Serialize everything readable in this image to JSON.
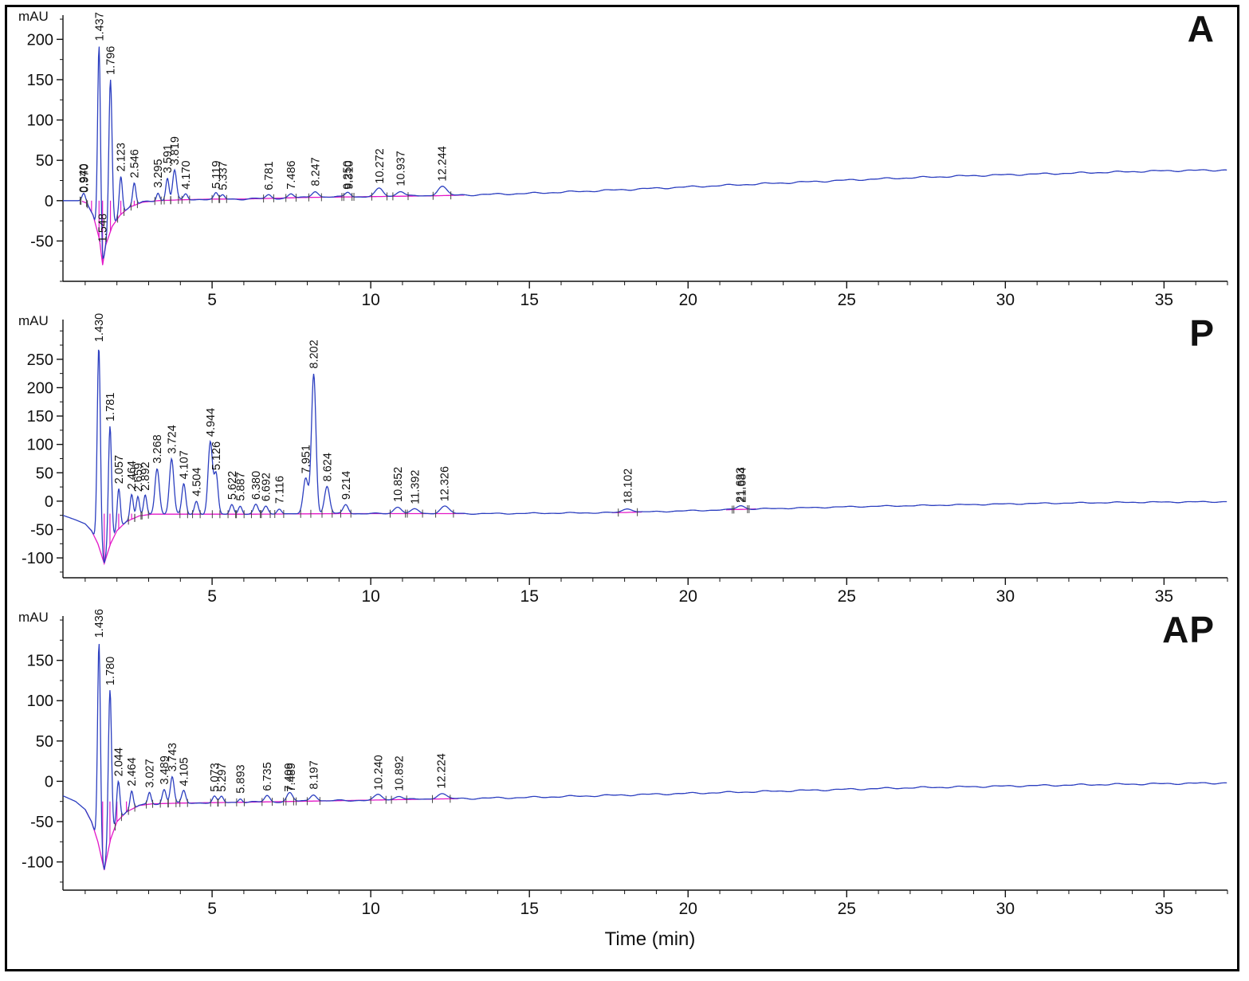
{
  "page": {
    "footer_xlabel": "Time (min)"
  },
  "chart_data": [
    {
      "type": "line",
      "panel_label": "A",
      "ylabel": "mAU",
      "ylim": [
        -100,
        230
      ],
      "yticks": [
        -50,
        0,
        50,
        100,
        150,
        200
      ],
      "y_minor_step": 25,
      "xlim": [
        0.3,
        37
      ],
      "xticks": [
        5,
        10,
        15,
        20,
        25,
        30,
        35
      ],
      "x_minor_step": 1,
      "trace_color": "#2c3fc0",
      "integration_color": "#e318c8",
      "integration": {
        "start": 0.9,
        "end": 13.0,
        "level": 0,
        "drops": [
          1.2,
          1.437,
          1.548,
          1.796,
          2.123,
          2.546
        ],
        "extra": []
      },
      "baseline": [
        [
          0.3,
          0
        ],
        [
          0.85,
          0
        ],
        [
          1.05,
          -3
        ],
        [
          1.25,
          -18
        ],
        [
          1.45,
          -48
        ],
        [
          1.548,
          -80
        ],
        [
          1.65,
          -55
        ],
        [
          1.85,
          -32
        ],
        [
          2.1,
          -18
        ],
        [
          2.4,
          -8
        ],
        [
          2.8,
          -2
        ],
        [
          3.3,
          0
        ],
        [
          4,
          1
        ],
        [
          5,
          2
        ],
        [
          6,
          2
        ],
        [
          8,
          4
        ],
        [
          10,
          5
        ],
        [
          12,
          6
        ],
        [
          13,
          7
        ],
        [
          15,
          9
        ],
        [
          17,
          12
        ],
        [
          20,
          17
        ],
        [
          23,
          22
        ],
        [
          26,
          27
        ],
        [
          29,
          31
        ],
        [
          32,
          34
        ],
        [
          35,
          37
        ],
        [
          37,
          38
        ]
      ],
      "peaks": [
        {
          "t": 0.94,
          "label": "0.940",
          "apex": 4,
          "w": 0.05
        },
        {
          "t": 0.97,
          "label": "0.970",
          "apex": 4,
          "w": 0.05
        },
        {
          "t": 1.437,
          "label": "1.437",
          "apex": 192,
          "w": 0.045
        },
        {
          "t": 1.796,
          "label": "1.796",
          "apex": 150,
          "w": 0.05
        },
        {
          "t": 2.123,
          "label": "2.123",
          "apex": 30,
          "w": 0.05
        },
        {
          "t": 2.546,
          "label": "2.546",
          "apex": 22,
          "w": 0.05
        },
        {
          "t": 3.295,
          "label": "3.295",
          "apex": 10,
          "w": 0.05
        },
        {
          "t": 3.591,
          "label": "3.591",
          "apex": 28,
          "w": 0.05
        },
        {
          "t": 3.819,
          "label": "3.819",
          "apex": 38,
          "w": 0.06
        },
        {
          "t": 4.17,
          "label": "4.170",
          "apex": 8,
          "w": 0.06
        },
        {
          "t": 5.119,
          "label": "5.119",
          "apex": 9,
          "w": 0.06
        },
        {
          "t": 5.337,
          "label": "5.337",
          "apex": 7,
          "w": 0.06
        },
        {
          "t": 6.781,
          "label": "6.781",
          "apex": 7,
          "w": 0.08
        },
        {
          "t": 7.486,
          "label": "7.486",
          "apex": 8,
          "w": 0.08
        },
        {
          "t": 8.247,
          "label": "8.247",
          "apex": 12,
          "w": 0.1
        },
        {
          "t": 9.25,
          "label": "9.250",
          "apex": 8,
          "w": 0.08
        },
        {
          "t": 9.31,
          "label": "9.310",
          "apex": 8,
          "w": 0.08
        },
        {
          "t": 10.272,
          "label": "10.272",
          "apex": 15,
          "w": 0.12
        },
        {
          "t": 10.937,
          "label": "10.937",
          "apex": 12,
          "w": 0.12
        },
        {
          "t": 12.244,
          "label": "12.244",
          "apex": 18,
          "w": 0.14
        }
      ],
      "below_labels": [
        {
          "t": 1.548,
          "label": "1.548",
          "v": -12
        }
      ]
    },
    {
      "type": "line",
      "panel_label": "P",
      "ylabel": "mAU",
      "ylim": [
        -135,
        320
      ],
      "yticks": [
        -100,
        -50,
        0,
        50,
        100,
        150,
        200,
        250
      ],
      "y_minor_step": 25,
      "xlim": [
        0.3,
        37
      ],
      "xticks": [
        5,
        10,
        15,
        20,
        25,
        30,
        35
      ],
      "x_minor_step": 1,
      "trace_color": "#2c3fc0",
      "integration_color": "#e318c8",
      "integration": {
        "start": 1.1,
        "end": 13.0,
        "level": -22,
        "drops": [
          1.6,
          1.781,
          2.057,
          2.464
        ],
        "extra": [
          [
            17.6,
            18.6
          ],
          [
            21.2,
            22.2
          ]
        ]
      },
      "baseline": [
        [
          0.3,
          -25
        ],
        [
          0.7,
          -33
        ],
        [
          1.0,
          -40
        ],
        [
          1.2,
          -52
        ],
        [
          1.4,
          -75
        ],
        [
          1.6,
          -110
        ],
        [
          1.8,
          -75
        ],
        [
          2.0,
          -52
        ],
        [
          2.3,
          -36
        ],
        [
          2.7,
          -26
        ],
        [
          3.1,
          -23
        ],
        [
          4,
          -23
        ],
        [
          6,
          -23
        ],
        [
          9,
          -22
        ],
        [
          12,
          -22
        ],
        [
          14,
          -22
        ],
        [
          16,
          -21
        ],
        [
          18,
          -20
        ],
        [
          20,
          -17
        ],
        [
          22,
          -14
        ],
        [
          25,
          -10
        ],
        [
          28,
          -7
        ],
        [
          31,
          -4
        ],
        [
          34,
          -2
        ],
        [
          37,
          -1
        ]
      ],
      "peaks": [
        {
          "t": 1.43,
          "label": "1.430",
          "apex": 272,
          "w": 0.05
        },
        {
          "t": 1.781,
          "label": "1.781",
          "apex": 132,
          "w": 0.05
        },
        {
          "t": 2.057,
          "label": "2.057",
          "apex": 22,
          "w": 0.05
        },
        {
          "t": 2.464,
          "label": "2.464",
          "apex": 12,
          "w": 0.05
        },
        {
          "t": 2.659,
          "label": "2.659",
          "apex": 8,
          "w": 0.05
        },
        {
          "t": 2.892,
          "label": "2.892",
          "apex": 10,
          "w": 0.05
        },
        {
          "t": 3.268,
          "label": "3.268",
          "apex": 58,
          "w": 0.07
        },
        {
          "t": 3.724,
          "label": "3.724",
          "apex": 75,
          "w": 0.07
        },
        {
          "t": 4.107,
          "label": "4.107",
          "apex": 30,
          "w": 0.06
        },
        {
          "t": 4.504,
          "label": "4.504",
          "apex": 0,
          "w": 0.06
        },
        {
          "t": 4.944,
          "label": "4.944",
          "apex": 105,
          "w": 0.07
        },
        {
          "t": 5.126,
          "label": "5.126",
          "apex": 46,
          "w": 0.06
        },
        {
          "t": 5.622,
          "label": "5.622",
          "apex": -6,
          "w": 0.06
        },
        {
          "t": 5.887,
          "label": "5.887",
          "apex": -8,
          "w": 0.06
        },
        {
          "t": 6.38,
          "label": "6.380",
          "apex": -6,
          "w": 0.07
        },
        {
          "t": 6.692,
          "label": "6.692",
          "apex": -9,
          "w": 0.07
        },
        {
          "t": 7.116,
          "label": "7.116",
          "apex": -13,
          "w": 0.07
        },
        {
          "t": 7.951,
          "label": "7.951",
          "apex": 40,
          "w": 0.08
        },
        {
          "t": 8.202,
          "label": "8.202",
          "apex": 225,
          "w": 0.07
        },
        {
          "t": 8.624,
          "label": "8.624",
          "apex": 26,
          "w": 0.08
        },
        {
          "t": 9.214,
          "label": "9.214",
          "apex": -6,
          "w": 0.08
        },
        {
          "t": 10.852,
          "label": "10.852",
          "apex": -10,
          "w": 0.12
        },
        {
          "t": 11.392,
          "label": "11.392",
          "apex": -14,
          "w": 0.12
        },
        {
          "t": 12.326,
          "label": "12.326",
          "apex": -9,
          "w": 0.14
        },
        {
          "t": 18.102,
          "label": "18.102",
          "apex": -13,
          "w": 0.15
        },
        {
          "t": 21.633,
          "label": "21.633",
          "apex": -11,
          "w": 0.12
        },
        {
          "t": 21.684,
          "label": "21.684",
          "apex": -11,
          "w": 0.12
        }
      ],
      "below_labels": []
    },
    {
      "type": "line",
      "panel_label": "AP",
      "ylabel": "mAU",
      "ylim": [
        -135,
        205
      ],
      "yticks": [
        -100,
        -50,
        0,
        50,
        100,
        150
      ],
      "y_minor_step": 25,
      "xlim": [
        0.3,
        37
      ],
      "xticks": [
        5,
        10,
        15,
        20,
        25,
        30,
        35
      ],
      "x_minor_step": 1,
      "trace_color": "#2c3fc0",
      "integration_color": "#e318c8",
      "integration": {
        "start": 1.0,
        "end": 12.8,
        "level": -25,
        "drops": [
          1.55,
          1.78,
          2.0,
          2.3
        ],
        "extra": []
      },
      "baseline": [
        [
          0.3,
          -18
        ],
        [
          0.7,
          -25
        ],
        [
          1.0,
          -35
        ],
        [
          1.2,
          -50
        ],
        [
          1.4,
          -75
        ],
        [
          1.6,
          -110
        ],
        [
          1.8,
          -72
        ],
        [
          2.0,
          -50
        ],
        [
          2.3,
          -38
        ],
        [
          2.7,
          -30
        ],
        [
          3.1,
          -28
        ],
        [
          4,
          -27
        ],
        [
          6,
          -26
        ],
        [
          9,
          -24
        ],
        [
          12,
          -22
        ],
        [
          15,
          -20
        ],
        [
          18,
          -17
        ],
        [
          21,
          -14
        ],
        [
          24,
          -11
        ],
        [
          27,
          -8
        ],
        [
          30,
          -6
        ],
        [
          33,
          -4
        ],
        [
          35,
          -3
        ],
        [
          37,
          -2
        ]
      ],
      "peaks": [
        {
          "t": 1.436,
          "label": "1.436",
          "apex": 172,
          "w": 0.045
        },
        {
          "t": 1.78,
          "label": "1.780",
          "apex": 113,
          "w": 0.05
        },
        {
          "t": 2.044,
          "label": "2.044",
          "apex": 0,
          "w": 0.05
        },
        {
          "t": 2.464,
          "label": "2.464",
          "apex": -12,
          "w": 0.05
        },
        {
          "t": 3.027,
          "label": "3.027",
          "apex": -14,
          "w": 0.05
        },
        {
          "t": 3.489,
          "label": "3.489",
          "apex": -10,
          "w": 0.06
        },
        {
          "t": 3.743,
          "label": "3.743",
          "apex": 6,
          "w": 0.06
        },
        {
          "t": 4.105,
          "label": "4.105",
          "apex": -12,
          "w": 0.06
        },
        {
          "t": 5.073,
          "label": "5.073",
          "apex": -19,
          "w": 0.06
        },
        {
          "t": 5.297,
          "label": "5.297",
          "apex": -19,
          "w": 0.06
        },
        {
          "t": 5.893,
          "label": "5.893",
          "apex": -21,
          "w": 0.06
        },
        {
          "t": 6.735,
          "label": "6.735",
          "apex": -18,
          "w": 0.08
        },
        {
          "t": 7.409,
          "label": "7.409",
          "apex": -19,
          "w": 0.08
        },
        {
          "t": 7.489,
          "label": "7.489",
          "apex": -19,
          "w": 0.08
        },
        {
          "t": 8.197,
          "label": "8.197",
          "apex": -16,
          "w": 0.1
        },
        {
          "t": 10.24,
          "label": "10.240",
          "apex": -17,
          "w": 0.12
        },
        {
          "t": 10.892,
          "label": "10.892",
          "apex": -18,
          "w": 0.12
        },
        {
          "t": 12.224,
          "label": "12.224",
          "apex": -15,
          "w": 0.14
        }
      ],
      "below_labels": []
    }
  ]
}
